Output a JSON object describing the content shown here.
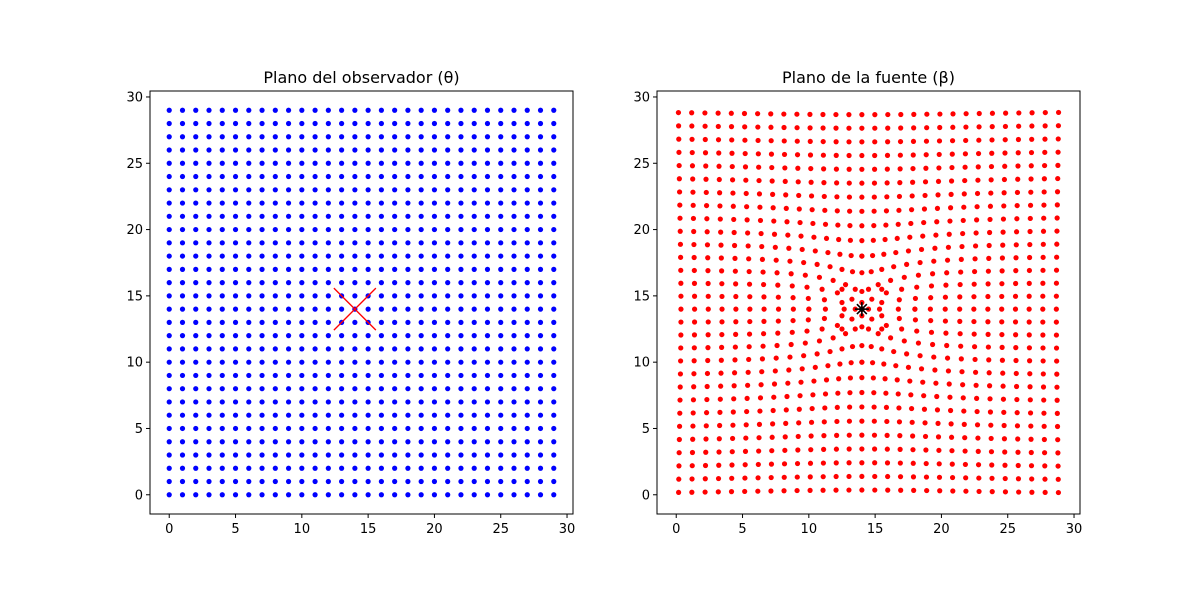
{
  "chart_data": [
    {
      "type": "scatter",
      "title": "Plano del observador (θ)",
      "xlabel": "",
      "ylabel": "",
      "xlim": [
        -1.45,
        30.45
      ],
      "ylim": [
        -1.45,
        30.45
      ],
      "xticks": [
        0,
        5,
        10,
        15,
        20,
        25,
        30
      ],
      "yticks": [
        0,
        5,
        10,
        15,
        20,
        25,
        30
      ],
      "grid": false,
      "legend": "none",
      "series": [
        {
          "kind": "point_grid",
          "color": "#0000ff",
          "marker": "circle",
          "x_values": [
            0,
            1,
            2,
            3,
            4,
            5,
            6,
            7,
            8,
            9,
            10,
            11,
            12,
            13,
            14,
            15,
            16,
            17,
            18,
            19,
            20,
            21,
            22,
            23,
            24,
            25,
            26,
            27,
            28,
            29
          ],
          "y_values": [
            0,
            1,
            2,
            3,
            4,
            5,
            6,
            7,
            8,
            9,
            10,
            11,
            12,
            13,
            14,
            15,
            16,
            17,
            18,
            19,
            20,
            21,
            22,
            23,
            24,
            25,
            26,
            27,
            28,
            29
          ]
        }
      ],
      "annotations": [
        {
          "kind": "x-marker",
          "x": 14,
          "y": 14,
          "color": "#ff0000"
        }
      ]
    },
    {
      "type": "scatter",
      "title": "Plano de la fuente (β)",
      "xlabel": "",
      "ylabel": "",
      "xlim": [
        -1.45,
        30.45
      ],
      "ylim": [
        -1.45,
        30.45
      ],
      "xticks": [
        0,
        5,
        10,
        15,
        20,
        25,
        30
      ],
      "yticks": [
        0,
        5,
        10,
        15,
        20,
        25,
        30
      ],
      "grid": false,
      "legend": "none",
      "series": [
        {
          "kind": "lens_mapped_grid",
          "color": "#ff0000",
          "marker": "circle",
          "lens_center": [
            14,
            14
          ],
          "einstein_radius_sq": 5,
          "mapping": "beta = theta - einstein_radius_sq * (theta - lens_center) / |theta - lens_center|^2",
          "source_x_values": [
            0,
            1,
            2,
            3,
            4,
            5,
            6,
            7,
            8,
            9,
            10,
            11,
            12,
            13,
            14,
            15,
            16,
            17,
            18,
            19,
            20,
            21,
            22,
            23,
            24,
            25,
            26,
            27,
            28,
            29
          ],
          "source_y_values": [
            0,
            1,
            2,
            3,
            4,
            5,
            6,
            7,
            8,
            9,
            10,
            11,
            12,
            13,
            14,
            15,
            16,
            17,
            18,
            19,
            20,
            21,
            22,
            23,
            24,
            25,
            26,
            27,
            28,
            29
          ]
        }
      ],
      "annotations": [
        {
          "kind": "star-marker",
          "x": 14,
          "y": 14,
          "color": "#000000"
        }
      ]
    }
  ]
}
